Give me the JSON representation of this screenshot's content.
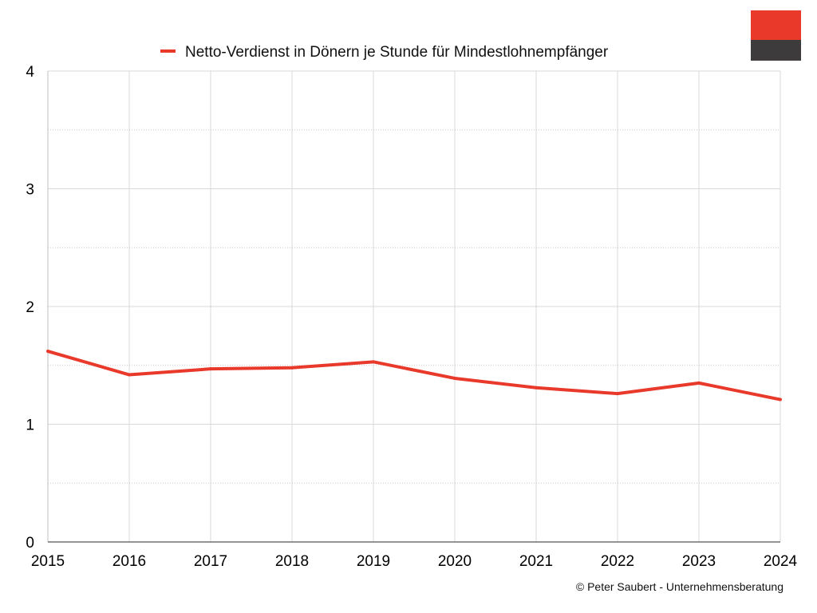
{
  "chart_data": {
    "type": "line",
    "categories": [
      "2015",
      "2016",
      "2017",
      "2018",
      "2019",
      "2020",
      "2021",
      "2022",
      "2023",
      "2024"
    ],
    "series": [
      {
        "name": "Netto-Verdienst in Dönern je Stunde für Mindestlohnempfänger",
        "values": [
          1.62,
          1.42,
          1.47,
          1.48,
          1.53,
          1.39,
          1.31,
          1.26,
          1.35,
          1.21
        ],
        "color": "#e8392b"
      }
    ],
    "y_ticks": [
      "0",
      "1",
      "2",
      "3",
      "4"
    ],
    "ylim": [
      0,
      4
    ],
    "minor_grid_step": 0.5,
    "grid": true,
    "legend_position": "top-center",
    "logo": {
      "top_color": "#e8392b",
      "bottom_color": "#3d3b3c"
    },
    "copyright": "© Peter Saubert - Unternehmensberatung"
  }
}
